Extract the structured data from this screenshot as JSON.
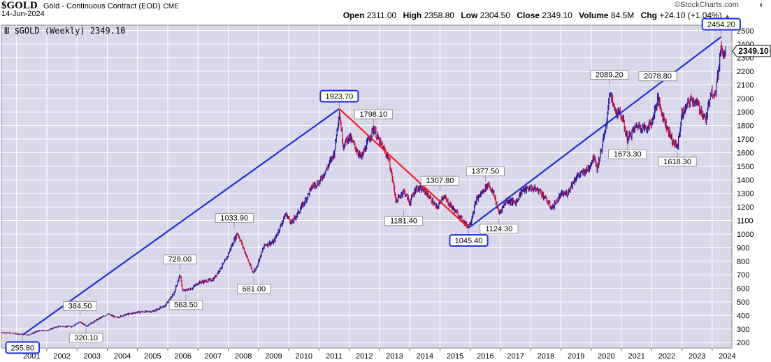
{
  "header": {
    "symbol": "$GOLD",
    "description": "Gold - Continuous Contract (EOD)",
    "exchange": "CME",
    "date": "14-Jun-2024",
    "brand": "©StockCharts.com",
    "ohlc": {
      "open_label": "Open",
      "open": "2311.00",
      "high_label": "High",
      "high": "2358.80",
      "low_label": "Low",
      "low": "2304.50",
      "close_label": "Close",
      "close": "2349.10",
      "volume_label": "Volume",
      "volume": "84.5M",
      "chg_label": "Chg",
      "chg": "+24.10 (+1.04%)"
    },
    "legend": "Ш $GOLD (Weekly) 2349.10"
  },
  "colors": {
    "plot_bg": "#d8d8ea",
    "grid": "#ffffff",
    "up_bar": "#1a1aa8",
    "down_bar": "#d0103a",
    "trend_blue": "#1f2fdd",
    "trend_red": "#ff1a1a"
  },
  "chart_data": {
    "type": "line",
    "title": "$GOLD (Weekly) 2349.10",
    "xlabel": "",
    "ylabel": "",
    "x_ticks": [
      "2001",
      "2002",
      "2003",
      "2004",
      "2005",
      "2006",
      "2007",
      "2008",
      "2009",
      "2010",
      "2011",
      "2012",
      "2013",
      "2014",
      "2015",
      "2016",
      "2017",
      "2018",
      "2019",
      "2020",
      "2021",
      "2022",
      "2023",
      "2024"
    ],
    "y_ticks": [
      200,
      300,
      400,
      500,
      600,
      700,
      800,
      900,
      1000,
      1100,
      1200,
      1300,
      1400,
      1500,
      1600,
      1700,
      1800,
      1900,
      2000,
      2100,
      2200,
      2300,
      2400,
      2500
    ],
    "ylim": [
      160,
      2540
    ],
    "y_axis_position": "right",
    "grid": true,
    "last_value_label": "2349.10",
    "series": [
      {
        "values_xy": [
          [
            2000.5,
            275
          ],
          [
            2001.0,
            265
          ],
          [
            2001.4,
            257
          ],
          [
            2001.7,
            285
          ],
          [
            2002.0,
            290
          ],
          [
            2002.4,
            320
          ],
          [
            2002.8,
            318
          ],
          [
            2003.1,
            352
          ],
          [
            2003.3,
            322
          ],
          [
            2003.6,
            360
          ],
          [
            2004.0,
            410
          ],
          [
            2004.3,
            385
          ],
          [
            2004.6,
            405
          ],
          [
            2005.0,
            425
          ],
          [
            2005.5,
            430
          ],
          [
            2005.9,
            470
          ],
          [
            2006.2,
            560
          ],
          [
            2006.4,
            700
          ],
          [
            2006.5,
            580
          ],
          [
            2006.8,
            600
          ],
          [
            2007.0,
            640
          ],
          [
            2007.5,
            665
          ],
          [
            2007.9,
            800
          ],
          [
            2008.2,
            960
          ],
          [
            2008.3,
            1010
          ],
          [
            2008.5,
            900
          ],
          [
            2008.8,
            720
          ],
          [
            2008.9,
            740
          ],
          [
            2009.2,
            920
          ],
          [
            2009.5,
            940
          ],
          [
            2009.9,
            1150
          ],
          [
            2010.1,
            1080
          ],
          [
            2010.5,
            1230
          ],
          [
            2010.8,
            1360
          ],
          [
            2011.0,
            1380
          ],
          [
            2011.3,
            1500
          ],
          [
            2011.5,
            1600
          ],
          [
            2011.67,
            1900
          ],
          [
            2011.8,
            1650
          ],
          [
            2012.0,
            1720
          ],
          [
            2012.4,
            1560
          ],
          [
            2012.8,
            1780
          ],
          [
            2013.0,
            1680
          ],
          [
            2013.3,
            1560
          ],
          [
            2013.45,
            1380
          ],
          [
            2013.55,
            1240
          ],
          [
            2013.8,
            1320
          ],
          [
            2014.0,
            1230
          ],
          [
            2014.2,
            1340
          ],
          [
            2014.5,
            1320
          ],
          [
            2014.9,
            1190
          ],
          [
            2015.1,
            1280
          ],
          [
            2015.5,
            1170
          ],
          [
            2015.9,
            1060
          ],
          [
            2016.0,
            1080
          ],
          [
            2016.2,
            1250
          ],
          [
            2016.5,
            1340
          ],
          [
            2016.6,
            1370
          ],
          [
            2016.8,
            1280
          ],
          [
            2016.95,
            1150
          ],
          [
            2017.2,
            1250
          ],
          [
            2017.5,
            1230
          ],
          [
            2017.7,
            1320
          ],
          [
            2018.0,
            1340
          ],
          [
            2018.3,
            1320
          ],
          [
            2018.7,
            1190
          ],
          [
            2019.0,
            1290
          ],
          [
            2019.2,
            1300
          ],
          [
            2019.5,
            1420
          ],
          [
            2019.9,
            1480
          ],
          [
            2020.1,
            1580
          ],
          [
            2020.2,
            1480
          ],
          [
            2020.5,
            1800
          ],
          [
            2020.6,
            2050
          ],
          [
            2020.8,
            1900
          ],
          [
            2021.0,
            1880
          ],
          [
            2021.2,
            1700
          ],
          [
            2021.5,
            1800
          ],
          [
            2021.8,
            1780
          ],
          [
            2022.0,
            1820
          ],
          [
            2022.2,
            2000
          ],
          [
            2022.4,
            1850
          ],
          [
            2022.7,
            1680
          ],
          [
            2022.85,
            1640
          ],
          [
            2023.0,
            1880
          ],
          [
            2023.3,
            2000
          ],
          [
            2023.5,
            1960
          ],
          [
            2023.8,
            1840
          ],
          [
            2023.95,
            2050
          ],
          [
            2024.1,
            2040
          ],
          [
            2024.2,
            2200
          ],
          [
            2024.3,
            2400
          ],
          [
            2024.35,
            2350
          ],
          [
            2024.45,
            2349.1
          ]
        ]
      }
    ],
    "trendlines": [
      {
        "color": "blue",
        "from": [
          2001.2,
          255.8
        ],
        "to": [
          2011.67,
          1923.7
        ]
      },
      {
        "color": "red",
        "from": [
          2011.67,
          1923.7
        ],
        "to": [
          2015.95,
          1045.4
        ]
      },
      {
        "color": "blue",
        "from": [
          2015.95,
          1045.4
        ],
        "to": [
          2024.3,
          2454.2
        ]
      }
    ],
    "annotations": [
      {
        "text": "255.80",
        "x": 2001.2,
        "y": 255.8,
        "boxed": true,
        "pos": "below"
      },
      {
        "text": "384.50",
        "x": 2003.1,
        "y": 384.5,
        "boxed": false,
        "pos": "above"
      },
      {
        "text": "320.10",
        "x": 2003.3,
        "y": 320.1,
        "boxed": false,
        "pos": "below"
      },
      {
        "text": "728.00",
        "x": 2006.4,
        "y": 728.0,
        "boxed": false,
        "pos": "above"
      },
      {
        "text": "563.50",
        "x": 2006.6,
        "y": 563.5,
        "boxed": false,
        "pos": "below"
      },
      {
        "text": "1033.90",
        "x": 2008.2,
        "y": 1033.9,
        "boxed": false,
        "pos": "above"
      },
      {
        "text": "681.00",
        "x": 2008.85,
        "y": 681.0,
        "boxed": false,
        "pos": "below"
      },
      {
        "text": "1923.70",
        "x": 2011.67,
        "y": 1923.7,
        "boxed": true,
        "pos": "above"
      },
      {
        "text": "1798.10",
        "x": 2012.8,
        "y": 1798.1,
        "boxed": false,
        "pos": "above"
      },
      {
        "text": "1181.40",
        "x": 2013.8,
        "y": 1181.4,
        "boxed": false,
        "pos": "below"
      },
      {
        "text": "1307.80",
        "x": 2015.0,
        "y": 1307.8,
        "boxed": false,
        "pos": "above"
      },
      {
        "text": "1045.40",
        "x": 2015.95,
        "y": 1045.4,
        "boxed": true,
        "pos": "below"
      },
      {
        "text": "1377.50",
        "x": 2016.5,
        "y": 1377.5,
        "boxed": false,
        "pos": "above"
      },
      {
        "text": "1124.30",
        "x": 2016.95,
        "y": 1124.3,
        "boxed": false,
        "pos": "below"
      },
      {
        "text": "2089.20",
        "x": 2020.6,
        "y": 2089.2,
        "boxed": false,
        "pos": "above"
      },
      {
        "text": "1673.30",
        "x": 2021.2,
        "y": 1673.3,
        "boxed": false,
        "pos": "below"
      },
      {
        "text": "2078.80",
        "x": 2022.2,
        "y": 2078.8,
        "boxed": false,
        "pos": "above"
      },
      {
        "text": "1618.30",
        "x": 2022.85,
        "y": 1618.3,
        "boxed": false,
        "pos": "below"
      },
      {
        "text": "2454.20",
        "x": 2024.3,
        "y": 2454.2,
        "boxed": true,
        "pos": "above"
      }
    ]
  }
}
